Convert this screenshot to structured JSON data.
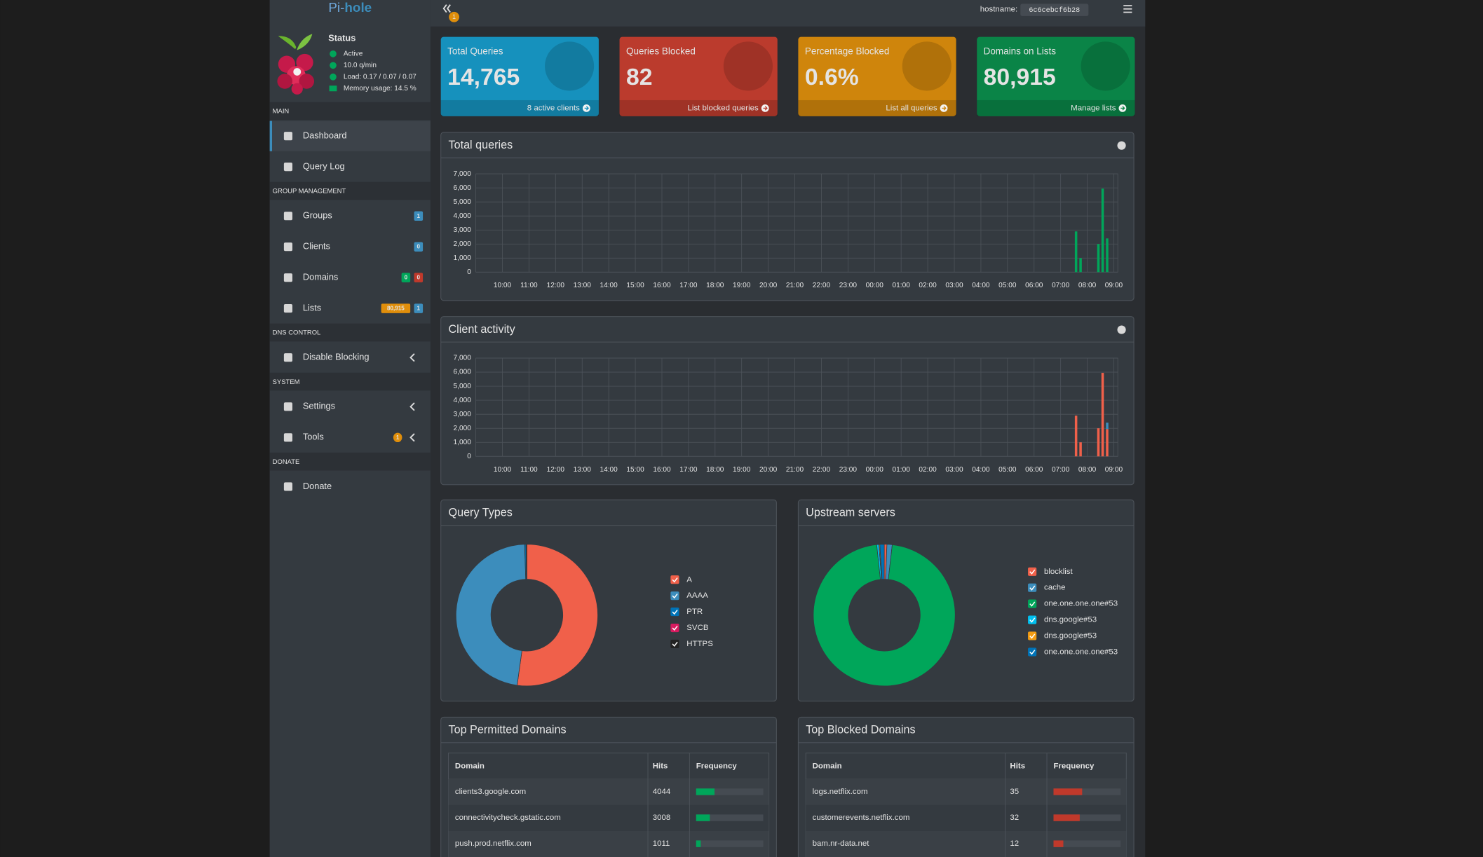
{
  "sidebar": {
    "brand": [
      "Pi-",
      "hole"
    ],
    "status": {
      "title": "Status",
      "items": [
        "Active",
        "10.0 q/min",
        "Load: 0.17 / 0.07 / 0.07",
        "Memory usage: 14.5 %"
      ]
    },
    "sections": [
      {
        "header": "MAIN",
        "items": [
          {
            "label": "Dashboard"
          },
          {
            "label": "Query Log"
          }
        ]
      },
      {
        "header": "GROUP MANAGEMENT",
        "items": [
          {
            "label": "Groups",
            "badges": [
              {
                "text": "1",
                "color": "#3c8dbc"
              }
            ]
          },
          {
            "label": "Clients",
            "badges": [
              {
                "text": "0",
                "color": "#3c8dbc"
              }
            ]
          },
          {
            "label": "Domains",
            "badges": [
              {
                "text": "0",
                "color": "#00a65a"
              },
              {
                "text": "0",
                "color": "#c0392b"
              }
            ]
          },
          {
            "label": "Lists",
            "badges": [
              {
                "text": "80,915",
                "color": "#e08e0b"
              },
              {
                "text": "1",
                "color": "#3c8dbc"
              }
            ]
          }
        ]
      },
      {
        "header": "DNS CONTROL",
        "items": [
          {
            "label": "Disable Blocking"
          }
        ]
      },
      {
        "header": "SYSTEM",
        "items": [
          {
            "label": "Settings"
          },
          {
            "label": "Tools",
            "badges": [
              {
                "text": "1",
                "color": "#e08e0b"
              }
            ]
          }
        ]
      },
      {
        "header": "DONATE",
        "items": [
          {
            "label": "Donate"
          }
        ]
      }
    ]
  },
  "navbar": {
    "badge": "1",
    "hostname_label": "hostname:",
    "hostname": "6c6cebcf6b28"
  },
  "stats": [
    {
      "title": "Total Queries",
      "value": "14,765",
      "link": "8 active clients",
      "color": "#1691bd"
    },
    {
      "title": "Queries Blocked",
      "value": "82",
      "link": "List blocked queries",
      "color": "#bb3b2d"
    },
    {
      "title": "Percentage Blocked",
      "value": "0.6%",
      "link": "List all queries",
      "color": "#cf850c"
    },
    {
      "title": "Domains on Lists",
      "value": "80,915",
      "link": "Manage lists",
      "color": "#0a8447"
    }
  ],
  "chart_data": [
    {
      "type": "bar",
      "title": "Total queries",
      "x": [
        31.58,
        31.75,
        32.42,
        32.58,
        32.75
      ],
      "series": [
        {
          "color": "#00a65a",
          "values": [
            2900,
            1000,
            2000,
            5950,
            2400
          ]
        }
      ],
      "xlim": [
        9,
        33.15
      ],
      "xticks": [
        {
          "value": 10,
          "label": "10:00"
        },
        {
          "value": 11,
          "label": "11:00"
        },
        {
          "value": 12,
          "label": "12:00"
        },
        {
          "value": 13,
          "label": "13:00"
        },
        {
          "value": 14,
          "label": "14:00"
        },
        {
          "value": 15,
          "label": "15:00"
        },
        {
          "value": 16,
          "label": "16:00"
        },
        {
          "value": 17,
          "label": "17:00"
        },
        {
          "value": 18,
          "label": "18:00"
        },
        {
          "value": 19,
          "label": "19:00"
        },
        {
          "value": 20,
          "label": "20:00"
        },
        {
          "value": 21,
          "label": "21:00"
        },
        {
          "value": 22,
          "label": "22:00"
        },
        {
          "value": 23,
          "label": "23:00"
        },
        {
          "value": 24,
          "label": "00:00"
        },
        {
          "value": 25,
          "label": "01:00"
        },
        {
          "value": 26,
          "label": "02:00"
        },
        {
          "value": 27,
          "label": "03:00"
        },
        {
          "value": 28,
          "label": "04:00"
        },
        {
          "value": 29,
          "label": "05:00"
        },
        {
          "value": 30,
          "label": "06:00"
        },
        {
          "value": 31,
          "label": "07:00"
        },
        {
          "value": 32,
          "label": "08:00"
        },
        {
          "value": 33,
          "label": "09:00"
        }
      ],
      "ylim": [
        0,
        7000
      ],
      "yticks": [
        0,
        {
          "value": 1000,
          "label": "1,000"
        },
        {
          "value": 2000,
          "label": "2,000"
        },
        {
          "value": 3000,
          "label": "3,000"
        },
        {
          "value": 4000,
          "label": "4,000"
        },
        {
          "value": 5000,
          "label": "5,000"
        },
        {
          "value": 6000,
          "label": "6,000"
        },
        {
          "value": 7000,
          "label": "7,000"
        }
      ],
      "grid": true
    },
    {
      "type": "bar",
      "title": "Client activity",
      "x": [
        31.58,
        31.75,
        32.42,
        32.58,
        32.75
      ],
      "series": [
        {
          "color": "#f0604a",
          "values": [
            2900,
            1000,
            2000,
            5950,
            1950
          ]
        },
        {
          "color": "#3c8dbc",
          "values": [
            0,
            0,
            0,
            0,
            450
          ]
        }
      ],
      "xlim": [
        9,
        33.15
      ],
      "xticks": [
        {
          "value": 10,
          "label": "10:00"
        },
        {
          "value": 11,
          "label": "11:00"
        },
        {
          "value": 12,
          "label": "12:00"
        },
        {
          "value": 13,
          "label": "13:00"
        },
        {
          "value": 14,
          "label": "14:00"
        },
        {
          "value": 15,
          "label": "15:00"
        },
        {
          "value": 16,
          "label": "16:00"
        },
        {
          "value": 17,
          "label": "17:00"
        },
        {
          "value": 18,
          "label": "18:00"
        },
        {
          "value": 19,
          "label": "19:00"
        },
        {
          "value": 20,
          "label": "20:00"
        },
        {
          "value": 21,
          "label": "21:00"
        },
        {
          "value": 22,
          "label": "22:00"
        },
        {
          "value": 23,
          "label": "23:00"
        },
        {
          "value": 24,
          "label": "00:00"
        },
        {
          "value": 25,
          "label": "01:00"
        },
        {
          "value": 26,
          "label": "02:00"
        },
        {
          "value": 27,
          "label": "03:00"
        },
        {
          "value": 28,
          "label": "04:00"
        },
        {
          "value": 29,
          "label": "05:00"
        },
        {
          "value": 30,
          "label": "06:00"
        },
        {
          "value": 31,
          "label": "07:00"
        },
        {
          "value": 32,
          "label": "08:00"
        },
        {
          "value": 33,
          "label": "09:00"
        }
      ],
      "ylim": [
        0,
        7000
      ],
      "yticks": [
        0,
        {
          "value": 1000,
          "label": "1,000"
        },
        {
          "value": 2000,
          "label": "2,000"
        },
        {
          "value": 3000,
          "label": "3,000"
        },
        {
          "value": 4000,
          "label": "4,000"
        },
        {
          "value": 5000,
          "label": "5,000"
        },
        {
          "value": 6000,
          "label": "6,000"
        },
        {
          "value": 7000,
          "label": "7,000"
        }
      ],
      "grid": true
    },
    {
      "type": "pie",
      "title": "Query Types",
      "categories": [
        "A",
        "AAAA",
        "PTR",
        "SVCB",
        "HTTPS"
      ],
      "values": [
        52.2,
        47.3,
        0.3,
        0.1,
        0.1
      ],
      "colors": [
        "#f0604a",
        "#3c8dbc",
        "#0073b7",
        "#d81b60",
        "#222222"
      ]
    },
    {
      "type": "pie",
      "title": "Upstream servers",
      "categories": [
        "blocklist",
        "cache",
        "one.one.one.one#53",
        "dns.google#53",
        "dns.google#53",
        "one.one.one.one#53"
      ],
      "values": [
        0.6,
        1.2,
        96.5,
        0.5,
        0.2,
        1.0
      ],
      "colors": [
        "#f0604a",
        "#3c8dbc",
        "#00a65a",
        "#00c0ef",
        "#f39c12",
        "#0073b7"
      ]
    }
  ],
  "tables": [
    {
      "title": "Top Permitted Domains",
      "columns": [
        "Domain",
        "Hits",
        "Frequency"
      ],
      "bar_color": "#00a65a",
      "rows": [
        [
          "clients3.google.com",
          4044
        ],
        [
          "connectivitycheck.gstatic.com",
          3008
        ],
        [
          "push.prod.netflix.com",
          1011
        ]
      ]
    },
    {
      "title": "Top Blocked Domains",
      "columns": [
        "Domain",
        "Hits",
        "Frequency"
      ],
      "bar_color": "#c0392b",
      "rows": [
        [
          "logs.netflix.com",
          35
        ],
        [
          "customerevents.netflix.com",
          32
        ],
        [
          "bam.nr-data.net",
          12
        ]
      ]
    }
  ]
}
